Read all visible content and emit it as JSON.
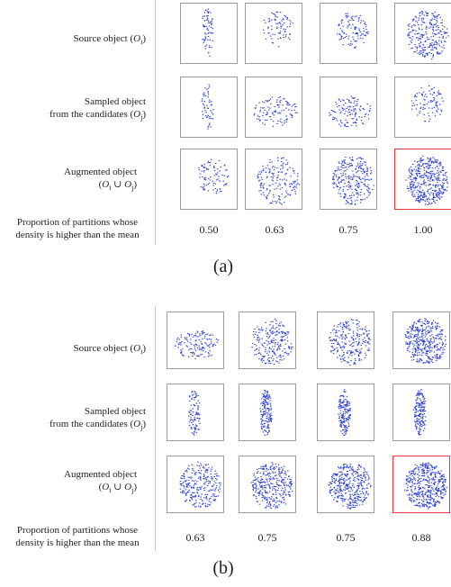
{
  "panels": [
    {
      "caption": "(a)",
      "rows": [
        {
          "line1": "Source object (",
          "sym": "O",
          "sub": "i",
          "line_end": ")"
        },
        {
          "line1": "Sampled object",
          "line2": "from the candidates (",
          "sym": "O",
          "sub": "j",
          "line_end": ")"
        },
        {
          "line1": "Augmented object",
          "line2": "(",
          "sym": "O",
          "sub": "i",
          "union": " ∪ ",
          "sym2": "O",
          "sub2": "j",
          "line_end": ")"
        }
      ],
      "proportion_label": [
        "Proportion of partitions whose",
        "density is higher than the mean"
      ],
      "values": [
        "0.50",
        "0.63",
        "0.75",
        "1.00"
      ],
      "highlight_column": 3
    },
    {
      "caption": "(b)",
      "rows": [
        {
          "line1": "Source object (",
          "sym": "O",
          "sub": "i",
          "line_end": ")"
        },
        {
          "line1": "Sampled object",
          "line2": "from the candidates (",
          "sym": "O",
          "sub": "j",
          "line_end": ")"
        },
        {
          "line1": "Augmented object",
          "line2": "(",
          "sym": "O",
          "sub": "i",
          "union": " ∪ ",
          "sym2": "O",
          "sub2": "j",
          "line_end": ")"
        }
      ],
      "proportion_label": [
        "Proportion of partitions whose",
        "density is higher than the mean"
      ],
      "values": [
        "0.63",
        "0.75",
        "0.75",
        "0.88"
      ],
      "highlight_column": 3
    }
  ],
  "colors": {
    "points": "#2a3fcf",
    "highlight_border": "#e63a3a",
    "box_border": "#9a9a9a"
  }
}
